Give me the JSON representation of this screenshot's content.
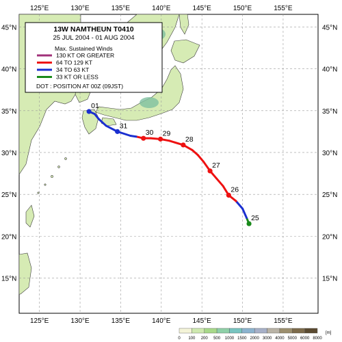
{
  "map": {
    "lon_labels": [
      "125°E",
      "130°E",
      "135°E",
      "140°E",
      "145°E",
      "150°E",
      "155°E"
    ],
    "lat_labels": [
      "45°N",
      "40°N",
      "35°N",
      "30°N",
      "25°N",
      "20°N",
      "15°N"
    ],
    "lon_range": [
      122.5,
      159.3
    ],
    "lat_range": [
      10.8,
      46.5
    ]
  },
  "legend": {
    "title": "13W  NAMTHEUN  T0410",
    "dates": "25 JUL 2004 - 01 AUG 2004",
    "header": "Max. Sustained Winds",
    "items": [
      {
        "label": "130 KT OR GREATER",
        "color": "#a0317a"
      },
      {
        "label": "64  TO 129 KT",
        "color": "#ee1111"
      },
      {
        "label": "34  TO 63 KT",
        "color": "#1a2fd0"
      },
      {
        "label": "33  KT OR LESS",
        "color": "#198a1a"
      }
    ],
    "dot_note": "DOT : POSITION AT 00Z (09JST)"
  },
  "track": {
    "points": [
      {
        "lon": 150.8,
        "lat": 21.5,
        "cat": "td"
      },
      {
        "lon": 150.5,
        "lat": 22.2,
        "cat": "td"
      },
      {
        "lon": 150.0,
        "lat": 23.3,
        "cat": "ts"
      },
      {
        "lon": 149.2,
        "lat": 24.2,
        "cat": "ts"
      },
      {
        "lon": 148.3,
        "lat": 24.9,
        "cat": "ty"
      },
      {
        "lon": 147.6,
        "lat": 26.0,
        "cat": "ty"
      },
      {
        "lon": 146.8,
        "lat": 26.9,
        "cat": "ty"
      },
      {
        "lon": 146.0,
        "lat": 27.8,
        "cat": "ty"
      },
      {
        "lon": 145.2,
        "lat": 28.9,
        "cat": "ty"
      },
      {
        "lon": 144.5,
        "lat": 29.7,
        "cat": "ty"
      },
      {
        "lon": 143.8,
        "lat": 30.3,
        "cat": "ty"
      },
      {
        "lon": 142.7,
        "lat": 30.9,
        "cat": "ty"
      },
      {
        "lon": 141.0,
        "lat": 31.4,
        "cat": "ty"
      },
      {
        "lon": 139.9,
        "lat": 31.6,
        "cat": "ty"
      },
      {
        "lon": 138.7,
        "lat": 31.7,
        "cat": "ty"
      },
      {
        "lon": 137.8,
        "lat": 31.7,
        "cat": "ty"
      },
      {
        "lon": 136.9,
        "lat": 31.9,
        "cat": "ty"
      },
      {
        "lon": 136.2,
        "lat": 32.0,
        "cat": "ts"
      },
      {
        "lon": 134.6,
        "lat": 32.5,
        "cat": "ts"
      },
      {
        "lon": 133.2,
        "lat": 33.2,
        "cat": "ts"
      },
      {
        "lon": 132.3,
        "lat": 34.0,
        "cat": "ts"
      },
      {
        "lon": 131.8,
        "lat": 34.6,
        "cat": "ts"
      },
      {
        "lon": 131.1,
        "lat": 34.9,
        "cat": "ts"
      }
    ],
    "daily": [
      {
        "day": "25",
        "lon": 150.8,
        "lat": 21.5,
        "color": "#198a1a"
      },
      {
        "day": "26",
        "lon": 148.3,
        "lat": 24.9,
        "color": "#ee1111"
      },
      {
        "day": "27",
        "lon": 146.0,
        "lat": 27.8,
        "color": "#ee1111"
      },
      {
        "day": "28",
        "lon": 142.7,
        "lat": 30.9,
        "color": "#ee1111"
      },
      {
        "day": "29",
        "lon": 139.9,
        "lat": 31.6,
        "color": "#ee1111"
      },
      {
        "day": "30",
        "lon": 137.8,
        "lat": 31.7,
        "color": "#ee1111"
      },
      {
        "day": "31",
        "lon": 134.6,
        "lat": 32.5,
        "color": "#1a2fd0"
      },
      {
        "day": "01",
        "lon": 131.1,
        "lat": 34.9,
        "color": "#1a2fd0"
      }
    ]
  },
  "colorbar": {
    "unit": "[m]",
    "labels": [
      "0",
      "100",
      "200",
      "500",
      "1000",
      "1500",
      "2000",
      "3000",
      "4000",
      "5000",
      "6000",
      "8000"
    ],
    "colors": [
      "#f4f4d8",
      "#cfe9b0",
      "#a8d98a",
      "#8fd0a8",
      "#78c4c0",
      "#8cb3cf",
      "#a7b0c8",
      "#b9b3a6",
      "#9c8f6e",
      "#7d6b4b",
      "#5a4a30"
    ]
  }
}
